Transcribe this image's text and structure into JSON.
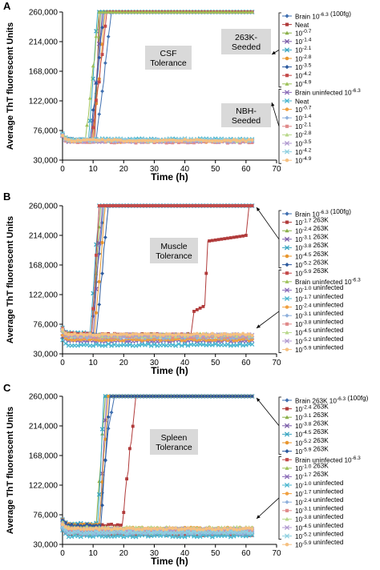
{
  "chart_data": [
    {
      "panel": "A",
      "type": "line",
      "xlabel": "Time (h)",
      "ylabel": "Average ThT fluorescent Units",
      "xlim": [
        0,
        70
      ],
      "ylim": [
        30000,
        260000
      ],
      "xticks": [
        0,
        10,
        20,
        30,
        40,
        50,
        60,
        70
      ],
      "yticks": [
        30000,
        76000,
        122000,
        168000,
        214000,
        260000
      ],
      "ytick_labels": [
        "30,000",
        "76,000",
        "122,000",
        "168,000",
        "214,000",
        "260,000"
      ],
      "annotations": [
        {
          "text": "CSF\nTolerance",
          "boxed": true
        },
        {
          "text": "263K-\nSeeded",
          "boxed": true
        },
        {
          "text": "NBH-\nSeeded",
          "boxed": true
        }
      ],
      "groups": [
        {
          "label": "263K-Seeded",
          "series_from": 0,
          "series_to": 8
        },
        {
          "label": "NBH-Seeded",
          "series_from": 9,
          "series_to": 17
        }
      ],
      "series": [
        {
          "name": "Brain 10^-6.3 (100fg)",
          "color": "#3f6fb0",
          "marker": "diamond",
          "kind": "rise",
          "baseline": 62000,
          "rise_start": 11,
          "rise_end": 16
        },
        {
          "name": "Neat",
          "color": "#b03a3a",
          "marker": "square",
          "kind": "rise",
          "baseline": 60000,
          "rise_start": 10.5,
          "rise_end": 12
        },
        {
          "name": "10^-0.7",
          "color": "#8bb04a",
          "marker": "triangle",
          "kind": "rise",
          "baseline": 61000,
          "rise_start": 10,
          "rise_end": 12.5
        },
        {
          "name": "10^-1.4",
          "color": "#7a5ca8",
          "marker": "x",
          "kind": "rise",
          "baseline": 60000,
          "rise_start": 9.5,
          "rise_end": 13
        },
        {
          "name": "10^-2.1",
          "color": "#3aa6c2",
          "marker": "x",
          "kind": "rise",
          "baseline": 62000,
          "rise_start": 8.5,
          "rise_end": 11.5
        },
        {
          "name": "10^-2.8",
          "color": "#e8962e",
          "marker": "circle",
          "kind": "rise",
          "baseline": 61000,
          "rise_start": 10,
          "rise_end": 14
        },
        {
          "name": "10^-3.5",
          "color": "#2c5a9e",
          "marker": "diamond",
          "kind": "rise",
          "baseline": 60000,
          "rise_start": 9,
          "rise_end": 13.5
        },
        {
          "name": "10^-4.2",
          "color": "#c44a4a",
          "marker": "square",
          "kind": "rise",
          "baseline": 61000,
          "rise_start": 9.5,
          "rise_end": 14.5
        },
        {
          "name": "10^-4.9",
          "color": "#9ec25a",
          "marker": "triangle",
          "kind": "rise",
          "baseline": 62000,
          "rise_start": 7.5,
          "rise_end": 12
        },
        {
          "name": "Brain uninfected 10^-6.3",
          "color": "#8a6cb8",
          "marker": "x",
          "kind": "flat",
          "baseline": 60000
        },
        {
          "name": "Neat",
          "color": "#4ab6cf",
          "marker": "x",
          "kind": "flat",
          "baseline": 62000
        },
        {
          "name": "10^-0.7",
          "color": "#f0a040",
          "marker": "circle",
          "kind": "flat",
          "baseline": 59000
        },
        {
          "name": "10^-1.4",
          "color": "#8fb0dc",
          "marker": "diamond",
          "kind": "flat",
          "baseline": 61000
        },
        {
          "name": "10^-2.1",
          "color": "#e08a8a",
          "marker": "square",
          "kind": "flat",
          "baseline": 58000
        },
        {
          "name": "10^-2.8",
          "color": "#b8d88a",
          "marker": "triangle",
          "kind": "flat",
          "baseline": 60000
        },
        {
          "name": "10^-3.5",
          "color": "#b09ad0",
          "marker": "x",
          "kind": "flat",
          "baseline": 59500
        },
        {
          "name": "10^-4.2",
          "color": "#8ed0e0",
          "marker": "x",
          "kind": "flat",
          "baseline": 61500
        },
        {
          "name": "10^-4.9",
          "color": "#f6c080",
          "marker": "circle",
          "kind": "flat",
          "baseline": 60500
        }
      ]
    },
    {
      "panel": "B",
      "type": "line",
      "xlabel": "Time (h)",
      "ylabel": "Average ThT fluorescent Units",
      "xlim": [
        0,
        70
      ],
      "ylim": [
        30000,
        260000
      ],
      "xticks": [
        0,
        10,
        20,
        30,
        40,
        50,
        60,
        70
      ],
      "yticks": [
        30000,
        76000,
        122000,
        168000,
        214000,
        260000
      ],
      "ytick_labels": [
        "30,000",
        "76,000",
        "122,000",
        "168,000",
        "214,000",
        "260,000"
      ],
      "annotations": [
        {
          "text": "Muscle\nTolerance",
          "boxed": true
        }
      ],
      "groups": [
        {
          "label": "",
          "series_from": 0,
          "series_to": 6
        },
        {
          "label": "",
          "series_from": 7,
          "series_to": 16
        }
      ],
      "series": [
        {
          "name": "Brain 10^-6.3 (100fg)",
          "color": "#3f6fb0",
          "marker": "diamond",
          "kind": "rise",
          "baseline": 62000,
          "rise_start": 9.5,
          "rise_end": 13.5
        },
        {
          "name": "10^-1.7 263K",
          "color": "#b03a3a",
          "marker": "square",
          "kind": "late",
          "baseline": 60000
        },
        {
          "name": "10^-2.4 263K",
          "color": "#8bb04a",
          "marker": "triangle",
          "kind": "rise",
          "baseline": 61000,
          "rise_start": 9.5,
          "rise_end": 12.5
        },
        {
          "name": "10^-3.1 263K",
          "color": "#7a5ca8",
          "marker": "x",
          "kind": "rise",
          "baseline": 60000,
          "rise_start": 10,
          "rise_end": 13
        },
        {
          "name": "10^-3.8 263K",
          "color": "#3aa6c2",
          "marker": "x",
          "kind": "rise",
          "baseline": 62000,
          "rise_start": 9,
          "rise_end": 12
        },
        {
          "name": "10^-4.5 263K",
          "color": "#e8962e",
          "marker": "circle",
          "kind": "rise",
          "baseline": 61000,
          "rise_start": 10.5,
          "rise_end": 14
        },
        {
          "name": "10^-5.2 263K",
          "color": "#2c5a9e",
          "marker": "diamond",
          "kind": "rise",
          "baseline": 60000,
          "rise_start": 11,
          "rise_end": 15
        },
        {
          "name": "10^-5.9 263K",
          "color": "#c44a4a",
          "marker": "square",
          "kind": "rise",
          "baseline": 61000,
          "rise_start": 9.5,
          "rise_end": 12
        },
        {
          "name": "Brain uninfected 10^-6.3",
          "color": "#9ec25a",
          "marker": "triangle",
          "kind": "flat",
          "baseline": 60000
        },
        {
          "name": "10^-1.0 uninfected",
          "color": "#8a6cb8",
          "marker": "x",
          "kind": "flat",
          "baseline": 50000
        },
        {
          "name": "10^-1.7 uninfected",
          "color": "#4ab6cf",
          "marker": "x",
          "kind": "flat",
          "baseline": 44000
        },
        {
          "name": "10^-2.4 uninfected",
          "color": "#f0a040",
          "marker": "circle",
          "kind": "flat",
          "baseline": 52000
        },
        {
          "name": "10^-3.1 uninfected",
          "color": "#8fb0dc",
          "marker": "diamond",
          "kind": "flat",
          "baseline": 55000
        },
        {
          "name": "10^-3.8 uninfected",
          "color": "#e08a8a",
          "marker": "square",
          "kind": "flat",
          "baseline": 57000
        },
        {
          "name": "10^-4.5 uninfected",
          "color": "#b8d88a",
          "marker": "triangle",
          "kind": "flat",
          "baseline": 58000
        },
        {
          "name": "10^-5.2 uninfected",
          "color": "#b09ad0",
          "marker": "x",
          "kind": "flat",
          "baseline": 59000
        },
        {
          "name": "10^-5.9 uninfected",
          "color": "#f6c080",
          "marker": "circle",
          "kind": "flat",
          "baseline": 60000
        }
      ]
    },
    {
      "panel": "C",
      "type": "line",
      "xlabel": "Time (h)",
      "ylabel": "Average ThT fluorescent Units",
      "xlim": [
        0,
        70
      ],
      "ylim": [
        30000,
        260000
      ],
      "xticks": [
        0,
        10,
        20,
        30,
        40,
        50,
        60,
        70
      ],
      "yticks": [
        30000,
        76000,
        122000,
        168000,
        214000,
        260000
      ],
      "ytick_labels": [
        "30,000",
        "76,000",
        "122,000",
        "168,000",
        "214,000",
        "260,000"
      ],
      "annotations": [
        {
          "text": "Spleen\nTolerance",
          "boxed": true
        }
      ],
      "groups": [
        {
          "label": "",
          "series_from": 0,
          "series_to": 6
        },
        {
          "label": "",
          "series_from": 7,
          "series_to": 16
        }
      ],
      "series": [
        {
          "name": "Brain 263K 10^-6.3 (100fg)",
          "color": "#3f6fb0",
          "marker": "diamond",
          "kind": "rise2",
          "baseline": 60000,
          "rise_start": 12,
          "plateau": 210000,
          "plateau_end": 15,
          "rise_end": 17
        },
        {
          "name": "10^-2.4 263K",
          "color": "#b03a3a",
          "marker": "square",
          "kind": "rise",
          "baseline": 60000,
          "rise_start": 19.5,
          "rise_end": 24
        },
        {
          "name": "10^-3.1 263K",
          "color": "#8bb04a",
          "marker": "triangle",
          "kind": "rise",
          "baseline": 61000,
          "rise_start": 11,
          "rise_end": 14
        },
        {
          "name": "10^-3.8 263K",
          "color": "#7a5ca8",
          "marker": "x",
          "kind": "rise",
          "baseline": 60000,
          "rise_start": 12,
          "rise_end": 14.5
        },
        {
          "name": "10^-4.5 263K",
          "color": "#3aa6c2",
          "marker": "x",
          "kind": "rise",
          "baseline": 62000,
          "rise_start": 11.5,
          "rise_end": 13.5
        },
        {
          "name": "10^-5.2 263K",
          "color": "#e8962e",
          "marker": "circle",
          "kind": "rise",
          "baseline": 61000,
          "rise_start": 12,
          "rise_end": 15
        },
        {
          "name": "10^-5.9 263K",
          "color": "#2c5a9e",
          "marker": "diamond",
          "kind": "rise",
          "baseline": 60000,
          "rise_start": 12.5,
          "rise_end": 15.5
        },
        {
          "name": "Brain uninfected 10^-6.3",
          "color": "#c44a4a",
          "marker": "square",
          "kind": "flat",
          "baseline": 45000
        },
        {
          "name": "10^-1.0 263K",
          "color": "#9ec25a",
          "marker": "triangle",
          "kind": "flat",
          "baseline": 48000
        },
        {
          "name": "10^-1.7 263K",
          "color": "#8a6cb8",
          "marker": "x",
          "kind": "flat",
          "baseline": 50000
        },
        {
          "name": "10^-1.0 uninfected",
          "color": "#4ab6cf",
          "marker": "x",
          "kind": "flat",
          "baseline": 43000
        },
        {
          "name": "10^-1.7 uninfected",
          "color": "#f0a040",
          "marker": "circle",
          "kind": "flat",
          "baseline": 55000
        },
        {
          "name": "10^-2.4 uninfected",
          "color": "#8fb0dc",
          "marker": "diamond",
          "kind": "flat",
          "baseline": 47000
        },
        {
          "name": "10^-3.1 uninfected",
          "color": "#e08a8a",
          "marker": "square",
          "kind": "flat",
          "baseline": 52000
        },
        {
          "name": "10^-3.8 uninfected",
          "color": "#b8d88a",
          "marker": "triangle",
          "kind": "flat",
          "baseline": 56000
        },
        {
          "name": "10^-4.5 uninfected",
          "color": "#b09ad0",
          "marker": "x",
          "kind": "flat",
          "baseline": 53000
        },
        {
          "name": "10^-5.2 uninfected",
          "color": "#8ed0e0",
          "marker": "x",
          "kind": "flat",
          "baseline": 49000
        },
        {
          "name": "10^-5.9 uninfected",
          "color": "#f6c080",
          "marker": "circle",
          "kind": "flat",
          "baseline": 54000
        }
      ]
    }
  ]
}
